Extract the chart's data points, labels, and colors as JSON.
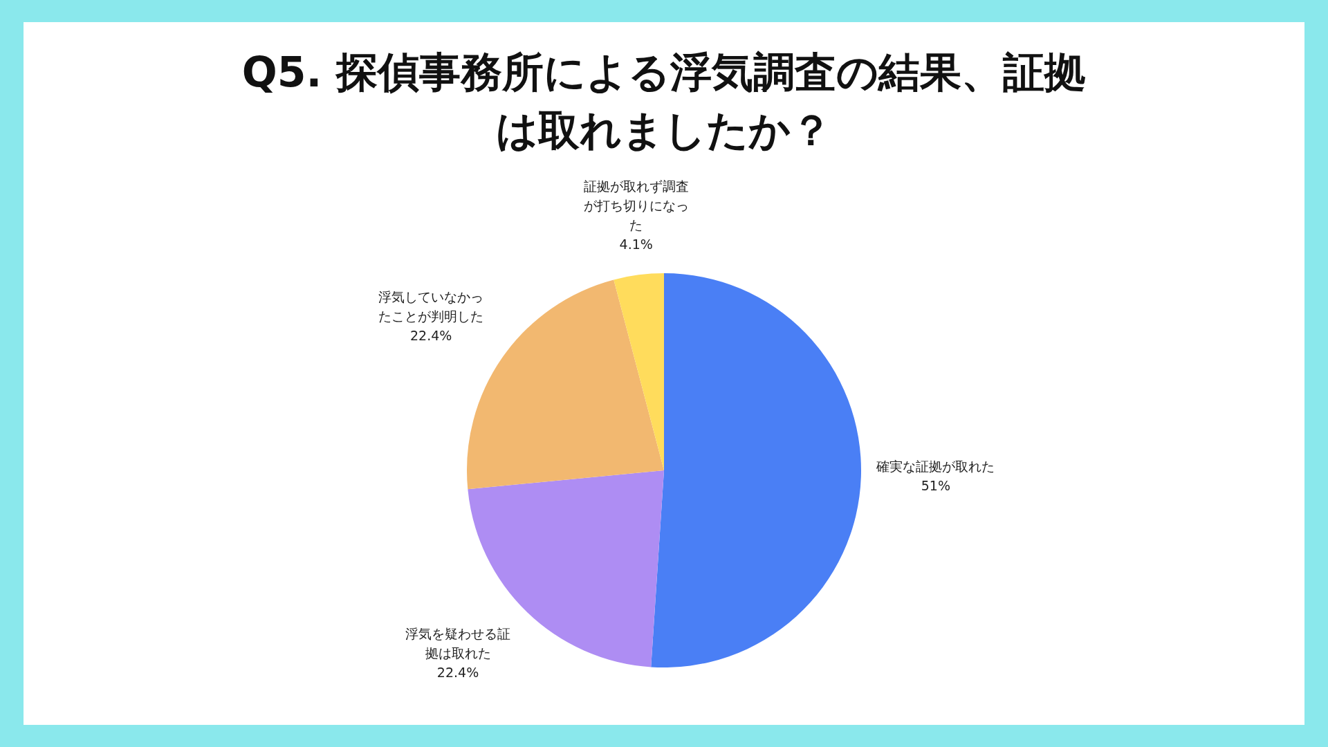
{
  "chart_data": {
    "type": "pie",
    "title": "Q5. 探偵事務所による浮気調査の結果、証拠は取れましたか？",
    "categories": [
      "確実な証拠が取れた",
      "浮気を疑わせる証拠は取れた",
      "浮気していなかったことが判明した",
      "証拠が取れず調査が打ち切りになった"
    ],
    "values": [
      51,
      22.4,
      22.4,
      4.1
    ],
    "colors": [
      "#4a7ff5",
      "#ae8df3",
      "#f2b870",
      "#ffdc5c"
    ],
    "value_labels": [
      "51%",
      "22.4%",
      "22.4%",
      "4.1%"
    ],
    "legend": false
  }
}
